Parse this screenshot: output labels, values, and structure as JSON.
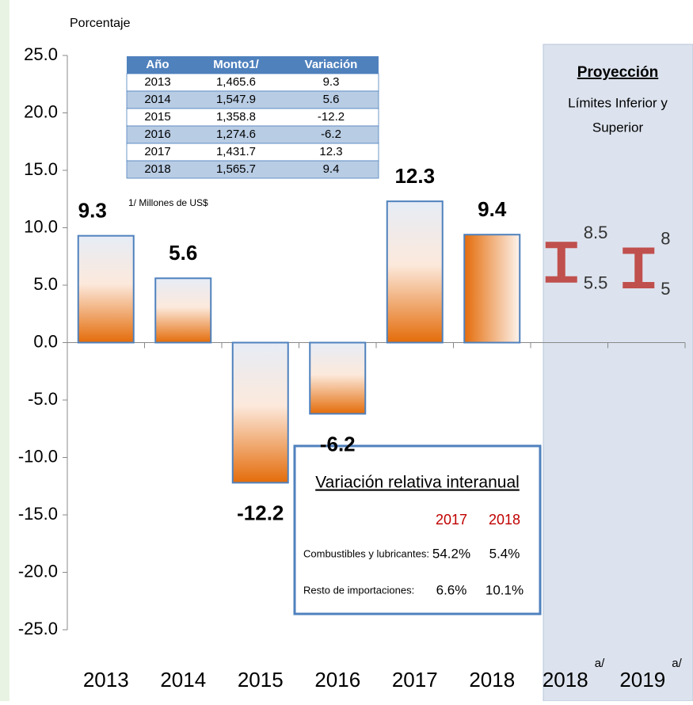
{
  "chart_data": {
    "type": "bar",
    "y_axis_label": "Porcentaje",
    "categories": [
      "2013",
      "2014",
      "2015",
      "2016",
      "2017",
      "2018"
    ],
    "values": [
      9.3,
      5.6,
      -12.2,
      -6.2,
      12.3,
      9.4
    ],
    "color": "#e46c0a",
    "edge_color": "#4f81bd",
    "ylim": [
      -25,
      25
    ],
    "yticks": [
      {
        "value": 25,
        "label": "25.0"
      },
      {
        "value": 20,
        "label": "20.0"
      },
      {
        "value": 15,
        "label": "15.0"
      },
      {
        "value": 10,
        "label": "10.0"
      },
      {
        "value": 5,
        "label": "5.0"
      },
      {
        "value": 0,
        "label": "0.0"
      },
      {
        "value": -5,
        "label": "-5.0"
      },
      {
        "value": -10,
        "label": "-10.0"
      },
      {
        "value": -15,
        "label": "-15.0"
      },
      {
        "value": -20,
        "label": "-20.0"
      },
      {
        "value": -25,
        "label": "-25.0"
      }
    ],
    "projection": {
      "title": "Proyección",
      "subtitle": [
        "Límites Inferior y",
        "Superior"
      ],
      "categories": [
        "2018",
        "2019"
      ],
      "superscript": "a/",
      "lower": [
        5.5,
        5.0
      ],
      "upper": [
        8.5,
        8.0
      ],
      "color": "#c0504d"
    },
    "table": {
      "header": [
        "Año",
        "Monto1/",
        "Variación"
      ],
      "rows": [
        [
          "2013",
          "1,465.6",
          "9.3"
        ],
        [
          "2014",
          "1,547.9",
          "5.6"
        ],
        [
          "2015",
          "1,358.8",
          "-12.2"
        ],
        [
          "2016",
          "1,274.6",
          "-6.2"
        ],
        [
          "2017",
          "1,431.7",
          "12.3"
        ],
        [
          "2018",
          "1,565.7",
          "9.4"
        ]
      ],
      "footnote": "1/ Millones de US$"
    },
    "box": {
      "title": "Variación relativa interanual",
      "columns": [
        "2017",
        "2018"
      ],
      "rows": [
        {
          "label": "Combustibles y lubricantes:",
          "values": [
            "54.2%",
            "5.4%"
          ]
        },
        {
          "label": "Resto de importaciones:",
          "values": [
            "6.6%",
            "10.1%"
          ]
        }
      ]
    }
  }
}
